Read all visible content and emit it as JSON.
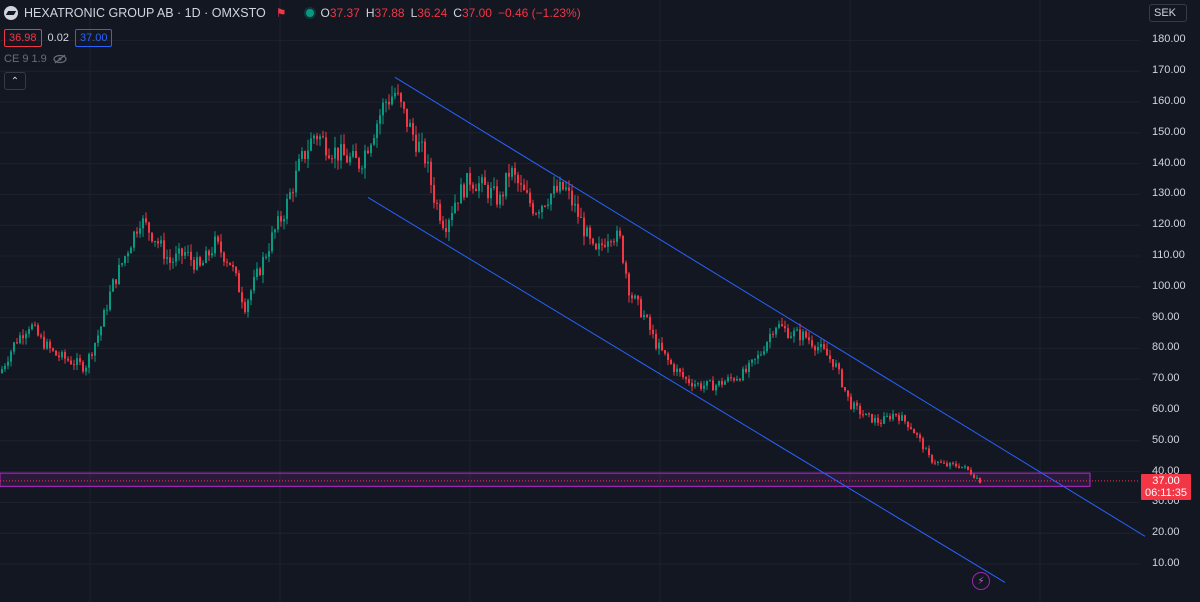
{
  "header": {
    "title": "HEXATRONIC GROUP AB · 1D · OMXSTO",
    "ohlc": {
      "o_label": "O",
      "o": "37.37",
      "h_label": "H",
      "h": "37.88",
      "l_label": "L",
      "l": "36.24",
      "c_label": "C",
      "c": "37.00",
      "change": "−0.46 (−1.23%)"
    }
  },
  "trade": {
    "sell": "36.98",
    "spread": "0.02",
    "buy": "37.00"
  },
  "indicator": {
    "label": "CE 9 1.9"
  },
  "currency": "SEK",
  "price_tag": {
    "price": "37.00",
    "countdown": "06:11:35"
  },
  "colors": {
    "background": "#131722",
    "up": "#089981",
    "down": "#f23645",
    "channel": "#2962ff",
    "zone": "#9c27b0",
    "grid": "#1e222d"
  },
  "chart_data": {
    "type": "candlestick",
    "symbol": "HEXATRONIC GROUP AB",
    "interval": "1D",
    "exchange": "OMXSTO",
    "y_axis": {
      "ticks": [
        "180.00",
        "170.00",
        "160.00",
        "150.00",
        "140.00",
        "130.00",
        "120.00",
        "110.00",
        "100.00",
        "90.00",
        "80.00",
        "70.00",
        "60.00",
        "50.00",
        "40.00",
        "30.00",
        "20.00",
        "10.00"
      ],
      "range": [
        3,
        183
      ],
      "position": "right"
    },
    "close_path": [
      [
        0,
        72
      ],
      [
        15,
        82
      ],
      [
        30,
        88
      ],
      [
        40,
        83
      ],
      [
        55,
        78
      ],
      [
        70,
        76
      ],
      [
        85,
        74
      ],
      [
        100,
        86
      ],
      [
        112,
        100
      ],
      [
        125,
        110
      ],
      [
        140,
        122
      ],
      [
        155,
        116
      ],
      [
        170,
        108
      ],
      [
        185,
        111
      ],
      [
        200,
        106
      ],
      [
        215,
        114
      ],
      [
        230,
        108
      ],
      [
        245,
        94
      ],
      [
        260,
        106
      ],
      [
        272,
        116
      ],
      [
        285,
        125
      ],
      [
        300,
        140
      ],
      [
        315,
        150
      ],
      [
        330,
        145
      ],
      [
        345,
        142
      ],
      [
        360,
        140
      ],
      [
        375,
        152
      ],
      [
        385,
        160
      ],
      [
        395,
        163
      ],
      [
        405,
        155
      ],
      [
        415,
        148
      ],
      [
        425,
        142
      ],
      [
        435,
        128
      ],
      [
        445,
        120
      ],
      [
        455,
        128
      ],
      [
        470,
        135
      ],
      [
        485,
        132
      ],
      [
        500,
        128
      ],
      [
        510,
        138
      ],
      [
        520,
        132
      ],
      [
        535,
        125
      ],
      [
        550,
        130
      ],
      [
        565,
        132
      ],
      [
        580,
        122
      ],
      [
        595,
        110
      ],
      [
        610,
        118
      ],
      [
        620,
        115
      ],
      [
        630,
        98
      ],
      [
        645,
        90
      ],
      [
        655,
        82
      ],
      [
        670,
        75
      ],
      [
        685,
        70
      ],
      [
        700,
        68
      ],
      [
        715,
        68
      ],
      [
        730,
        70
      ],
      [
        745,
        72
      ],
      [
        760,
        78
      ],
      [
        775,
        88
      ],
      [
        790,
        85
      ],
      [
        805,
        84
      ],
      [
        820,
        80
      ],
      [
        835,
        75
      ],
      [
        850,
        62
      ],
      [
        865,
        58
      ],
      [
        880,
        56
      ],
      [
        895,
        59
      ],
      [
        910,
        55
      ],
      [
        920,
        50
      ],
      [
        930,
        44
      ],
      [
        945,
        42
      ],
      [
        960,
        42
      ],
      [
        970,
        40
      ],
      [
        980,
        37
      ]
    ],
    "channel_lines": [
      {
        "name": "upper",
        "from": [
          395,
          168
        ],
        "to": [
          1145,
          19
        ]
      },
      {
        "name": "lower",
        "from": [
          368,
          129
        ],
        "to": [
          1005,
          4
        ]
      }
    ],
    "zone": {
      "from_price": 35.2,
      "to_price": 39.5,
      "x_start": 0,
      "x_end": 1090
    },
    "last_price": 37.0
  }
}
